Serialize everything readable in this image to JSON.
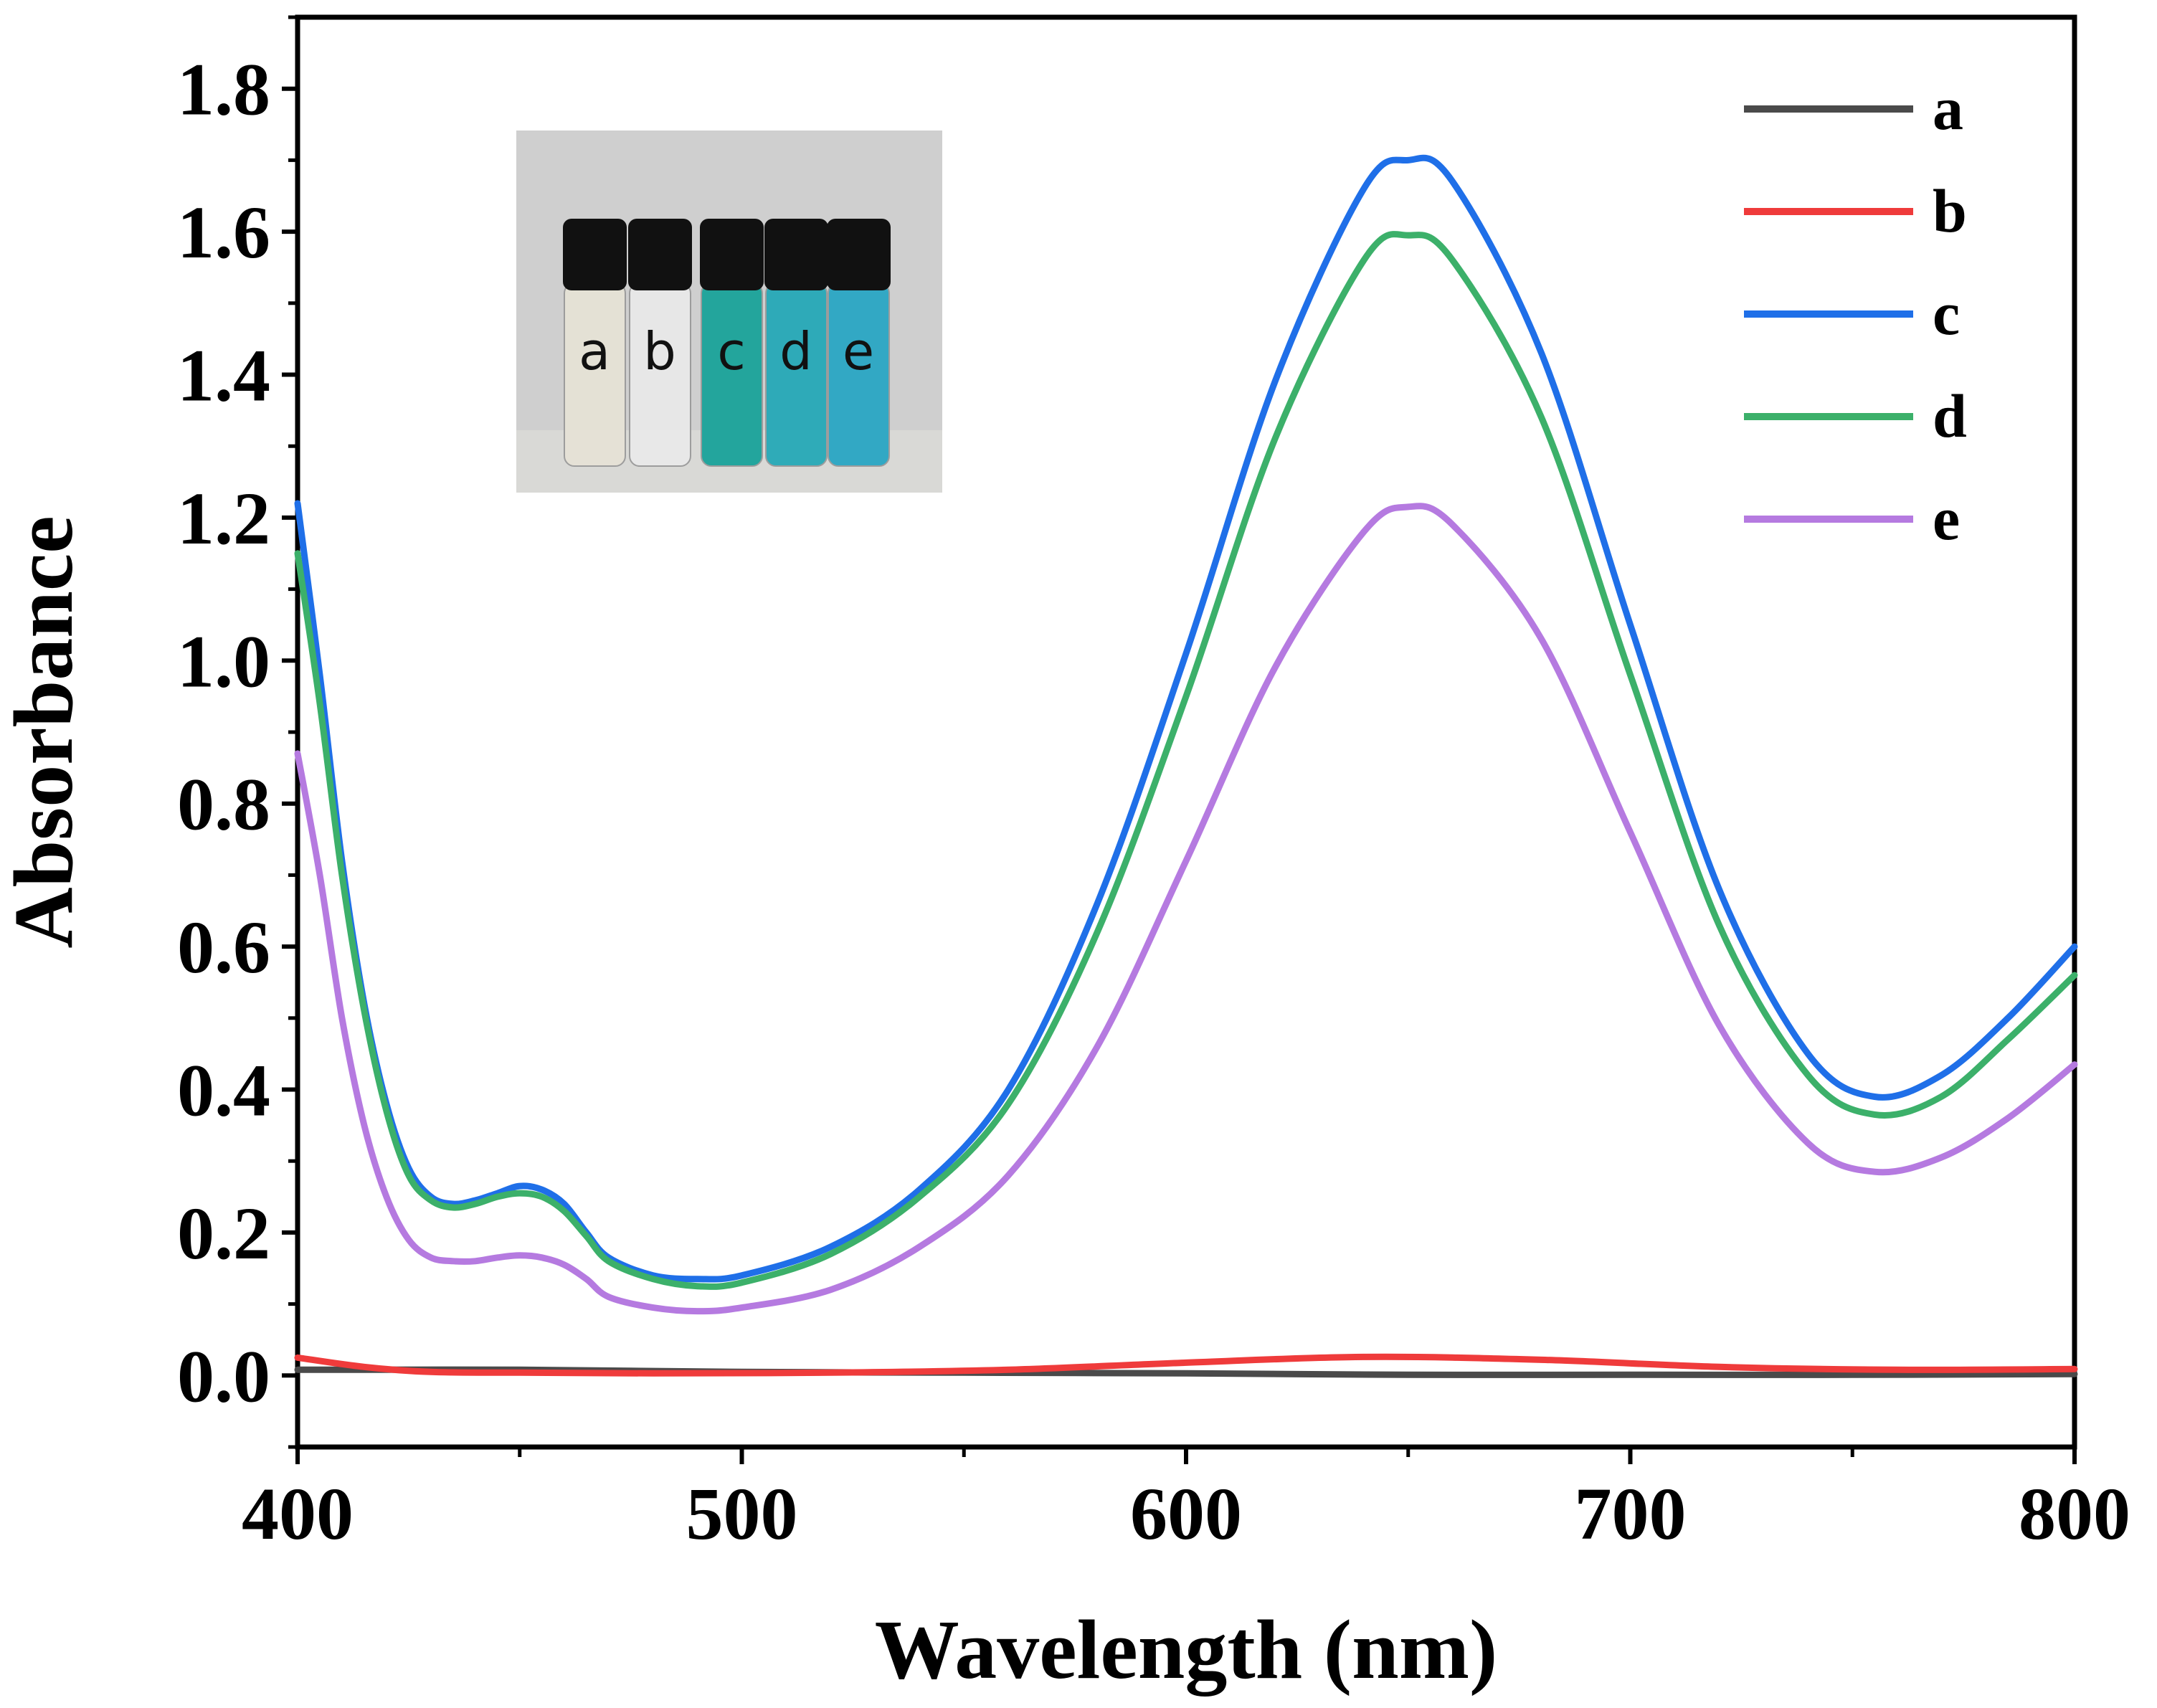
{
  "chart_data": {
    "type": "line",
    "title": "",
    "xlabel": "Wavelength (nm)",
    "ylabel": "Absorbance",
    "xlim": [
      400,
      800
    ],
    "ylim": [
      -0.1,
      1.9
    ],
    "xticks": [
      400,
      500,
      600,
      700,
      800
    ],
    "xtick_labels": [
      "400",
      "500",
      "600",
      "700",
      "800"
    ],
    "yticks": [
      0.0,
      0.2,
      0.4,
      0.6,
      0.8,
      1.0,
      1.2,
      1.4,
      1.6,
      1.8
    ],
    "ytick_labels": [
      "0.0",
      "0.2",
      "0.4",
      "0.6",
      "0.8",
      "1.0",
      "1.2",
      "1.4",
      "1.6",
      "1.8"
    ],
    "grid": false,
    "legend_position": "top-right",
    "series": [
      {
        "name": "a",
        "color": "#4a4a4a",
        "x": [
          400,
          450,
          500,
          550,
          600,
          650,
          700,
          750,
          800
        ],
        "y": [
          0.008,
          0.008,
          0.005,
          0.004,
          0.003,
          0.001,
          0.001,
          0.001,
          0.002
        ]
      },
      {
        "name": "b",
        "color": "#ef3b3b",
        "x": [
          400,
          415,
          430,
          450,
          480,
          520,
          560,
          600,
          640,
          680,
          720,
          760,
          800
        ],
        "y": [
          0.025,
          0.012,
          0.005,
          0.004,
          0.003,
          0.004,
          0.008,
          0.018,
          0.026,
          0.022,
          0.012,
          0.008,
          0.009
        ]
      },
      {
        "name": "c",
        "color": "#1f6fe8",
        "x": [
          400,
          405,
          410,
          415,
          420,
          425,
          430,
          435,
          440,
          445,
          450,
          455,
          460,
          465,
          470,
          480,
          490,
          500,
          520,
          540,
          560,
          580,
          600,
          620,
          640,
          650,
          660,
          680,
          700,
          720,
          740,
          755,
          770,
          785,
          800
        ],
        "y": [
          1.22,
          0.98,
          0.72,
          0.52,
          0.38,
          0.29,
          0.25,
          0.24,
          0.245,
          0.255,
          0.265,
          0.26,
          0.24,
          0.2,
          0.165,
          0.14,
          0.135,
          0.14,
          0.18,
          0.26,
          0.4,
          0.66,
          1.01,
          1.39,
          1.66,
          1.7,
          1.67,
          1.43,
          1.05,
          0.68,
          0.45,
          0.39,
          0.42,
          0.5,
          0.6
        ]
      },
      {
        "name": "d",
        "color": "#3cb06a",
        "x": [
          400,
          405,
          410,
          415,
          420,
          425,
          430,
          435,
          440,
          445,
          450,
          455,
          460,
          465,
          470,
          480,
          490,
          500,
          520,
          540,
          560,
          580,
          600,
          620,
          640,
          650,
          660,
          680,
          700,
          720,
          740,
          755,
          770,
          785,
          800
        ],
        "y": [
          1.15,
          0.94,
          0.7,
          0.51,
          0.37,
          0.28,
          0.245,
          0.235,
          0.24,
          0.25,
          0.255,
          0.25,
          0.23,
          0.195,
          0.16,
          0.135,
          0.125,
          0.13,
          0.17,
          0.25,
          0.38,
          0.62,
          0.95,
          1.31,
          1.56,
          1.595,
          1.56,
          1.34,
          0.98,
          0.63,
          0.42,
          0.365,
          0.39,
          0.47,
          0.56
        ]
      },
      {
        "name": "e",
        "color": "#b57ae0",
        "x": [
          400,
          405,
          410,
          415,
          420,
          425,
          430,
          435,
          440,
          445,
          450,
          455,
          460,
          465,
          470,
          480,
          490,
          500,
          520,
          540,
          560,
          580,
          600,
          620,
          640,
          650,
          660,
          680,
          700,
          720,
          740,
          755,
          770,
          785,
          800
        ],
        "y": [
          0.87,
          0.7,
          0.5,
          0.35,
          0.25,
          0.19,
          0.165,
          0.16,
          0.16,
          0.165,
          0.168,
          0.165,
          0.155,
          0.135,
          0.11,
          0.095,
          0.09,
          0.095,
          0.12,
          0.18,
          0.28,
          0.46,
          0.72,
          0.99,
          1.18,
          1.215,
          1.19,
          1.03,
          0.76,
          0.49,
          0.325,
          0.285,
          0.305,
          0.36,
          0.435
        ]
      }
    ],
    "inset": {
      "description_labels": [
        "a",
        "b",
        "c",
        "d",
        "e"
      ],
      "vial_colors": [
        "#e6e2d6",
        "#e9e9e9",
        "#1aa39a",
        "#26a9b7",
        "#2aa6c4"
      ]
    }
  }
}
